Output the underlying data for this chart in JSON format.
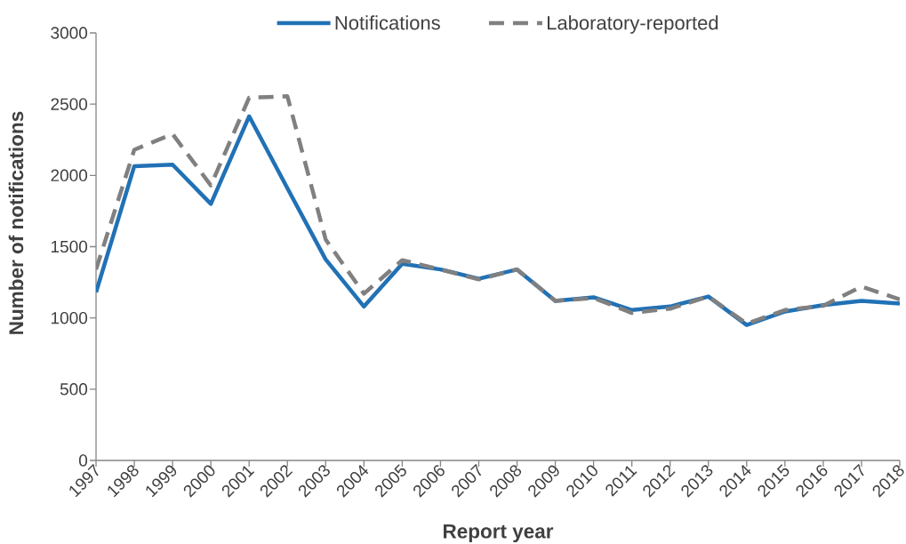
{
  "chart_data": {
    "type": "line",
    "xlabel": "Report year",
    "ylabel": "Number of notifications",
    "categories": [
      "1997",
      "1998",
      "1999",
      "2000",
      "2001",
      "2002",
      "2003",
      "2004",
      "2005",
      "2006",
      "2007",
      "2008",
      "2009",
      "2010",
      "2011",
      "2012",
      "2013",
      "2014",
      "2015",
      "2016",
      "2017",
      "2018"
    ],
    "series": [
      {
        "name": "Notifications",
        "color": "#2171b5",
        "line_style": "solid",
        "values": [
          1180,
          2065,
          2075,
          1800,
          2415,
          1910,
          1410,
          1080,
          1380,
          1340,
          1275,
          1340,
          1120,
          1145,
          1055,
          1080,
          1150,
          950,
          1045,
          1090,
          1120,
          1100
        ]
      },
      {
        "name": "Laboratory-reported",
        "color": "#808080",
        "line_style": "dashed",
        "values": [
          1340,
          2180,
          2290,
          1930,
          2545,
          2555,
          1550,
          1170,
          1405,
          1340,
          1270,
          1340,
          1120,
          1140,
          1035,
          1065,
          1150,
          960,
          1055,
          1085,
          1220,
          1130
        ]
      }
    ],
    "ylim": [
      0,
      3000
    ],
    "yticks": [
      0,
      500,
      1000,
      1500,
      2000,
      2500,
      3000
    ],
    "legend": "top"
  }
}
